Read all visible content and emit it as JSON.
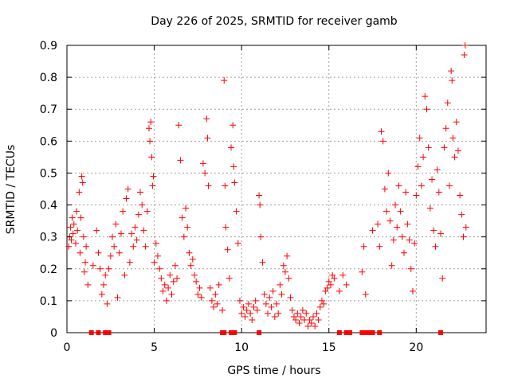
{
  "chart_data": {
    "type": "scatter",
    "title": "Day 226 of 2025, SRMTID for receiver gamb",
    "xlabel": "GPS time / hours",
    "ylabel": "SRMTID / TECUs",
    "xlim": [
      0,
      24
    ],
    "ylim": [
      0,
      0.9
    ],
    "xticks": [
      0,
      5,
      10,
      15,
      20
    ],
    "yticks": [
      0,
      0.1,
      0.2,
      0.3,
      0.4,
      0.5,
      0.6,
      0.7,
      0.8,
      0.9
    ],
    "xtick_labels": [
      "0",
      "5",
      "10",
      "15",
      "20"
    ],
    "ytick_labels": [
      "0",
      "0.1",
      "0.2",
      "0.3",
      "0.4",
      "0.5",
      "0.6",
      "0.7",
      "0.8",
      "0.9"
    ],
    "grid": true,
    "marker": "+",
    "series_color": "#ff0000",
    "series": [
      {
        "name": "SRMTID",
        "points": [
          [
            0.1,
            0.27
          ],
          [
            0.15,
            0.3
          ],
          [
            0.2,
            0.33
          ],
          [
            0.25,
            0.29
          ],
          [
            0.3,
            0.36
          ],
          [
            0.35,
            0.31
          ],
          [
            0.4,
            0.34
          ],
          [
            0.5,
            0.28
          ],
          [
            0.55,
            0.38
          ],
          [
            0.6,
            0.32
          ],
          [
            0.7,
            0.44
          ],
          [
            0.75,
            0.25
          ],
          [
            0.8,
            0.36
          ],
          [
            0.85,
            0.49
          ],
          [
            0.9,
            0.47
          ],
          [
            0.95,
            0.3
          ],
          [
            1.0,
            0.19
          ],
          [
            1.05,
            0.22
          ],
          [
            1.1,
            0.27
          ],
          [
            1.2,
            0.15
          ],
          [
            1.5,
            0.21
          ],
          [
            1.7,
            0.32
          ],
          [
            1.8,
            0.25
          ],
          [
            1.9,
            0.2
          ],
          [
            2.0,
            0.12
          ],
          [
            2.1,
            0.15
          ],
          [
            2.2,
            0.18
          ],
          [
            2.3,
            0.09
          ],
          [
            2.4,
            0.2
          ],
          [
            2.5,
            0.24
          ],
          [
            2.6,
            0.3
          ],
          [
            2.7,
            0.27
          ],
          [
            2.8,
            0.34
          ],
          [
            2.9,
            0.11
          ],
          [
            3.0,
            0.25
          ],
          [
            3.1,
            0.31
          ],
          [
            3.2,
            0.38
          ],
          [
            3.3,
            0.18
          ],
          [
            3.4,
            0.42
          ],
          [
            3.5,
            0.45
          ],
          [
            3.6,
            0.22
          ],
          [
            3.7,
            0.31
          ],
          [
            3.8,
            0.27
          ],
          [
            3.9,
            0.33
          ],
          [
            4.0,
            0.29
          ],
          [
            4.1,
            0.37
          ],
          [
            4.2,
            0.44
          ],
          [
            4.3,
            0.4
          ],
          [
            4.4,
            0.32
          ],
          [
            4.5,
            0.27
          ],
          [
            4.6,
            0.38
          ],
          [
            4.7,
            0.64
          ],
          [
            4.75,
            0.6
          ],
          [
            4.8,
            0.66
          ],
          [
            4.85,
            0.55
          ],
          [
            4.9,
            0.46
          ],
          [
            4.95,
            0.49
          ],
          [
            5.0,
            0.22
          ],
          [
            5.1,
            0.28
          ],
          [
            5.2,
            0.24
          ],
          [
            5.3,
            0.2
          ],
          [
            5.4,
            0.17
          ],
          [
            5.5,
            0.13
          ],
          [
            5.6,
            0.15
          ],
          [
            5.7,
            0.1
          ],
          [
            5.8,
            0.14
          ],
          [
            5.9,
            0.18
          ],
          [
            6.0,
            0.12
          ],
          [
            6.1,
            0.16
          ],
          [
            6.2,
            0.21
          ],
          [
            6.3,
            0.17
          ],
          [
            6.4,
            0.65
          ],
          [
            6.5,
            0.54
          ],
          [
            6.6,
            0.36
          ],
          [
            6.7,
            0.3
          ],
          [
            6.8,
            0.39
          ],
          [
            6.9,
            0.33
          ],
          [
            7.0,
            0.25
          ],
          [
            7.1,
            0.21
          ],
          [
            7.2,
            0.23
          ],
          [
            7.3,
            0.18
          ],
          [
            7.4,
            0.16
          ],
          [
            7.5,
            0.12
          ],
          [
            7.6,
            0.14
          ],
          [
            7.7,
            0.11
          ],
          [
            7.8,
            0.53
          ],
          [
            7.9,
            0.5
          ],
          [
            8.0,
            0.67
          ],
          [
            8.05,
            0.61
          ],
          [
            8.1,
            0.46
          ],
          [
            8.2,
            0.14
          ],
          [
            8.3,
            0.1
          ],
          [
            8.4,
            0.08
          ],
          [
            8.5,
            0.12
          ],
          [
            8.6,
            0.09
          ],
          [
            8.7,
            0.15
          ],
          [
            8.9,
            0.07
          ],
          [
            9.0,
            0.79
          ],
          [
            9.05,
            0.46
          ],
          [
            9.1,
            0.33
          ],
          [
            9.2,
            0.26
          ],
          [
            9.3,
            0.17
          ],
          [
            9.4,
            0.58
          ],
          [
            9.5,
            0.65
          ],
          [
            9.55,
            0.52
          ],
          [
            9.6,
            0.47
          ],
          [
            9.7,
            0.38
          ],
          [
            9.8,
            0.28
          ],
          [
            9.9,
            0.1
          ],
          [
            10.0,
            0.06
          ],
          [
            10.1,
            0.08
          ],
          [
            10.2,
            0.05
          ],
          [
            10.3,
            0.07
          ],
          [
            10.4,
            0.09
          ],
          [
            10.5,
            0.06
          ],
          [
            10.6,
            0.04
          ],
          [
            10.7,
            0.08
          ],
          [
            10.8,
            0.1
          ],
          [
            10.9,
            0.07
          ],
          [
            11.0,
            0.43
          ],
          [
            11.05,
            0.4
          ],
          [
            11.1,
            0.3
          ],
          [
            11.2,
            0.22
          ],
          [
            11.3,
            0.12
          ],
          [
            11.4,
            0.09
          ],
          [
            11.5,
            0.06
          ],
          [
            11.6,
            0.11
          ],
          [
            11.7,
            0.08
          ],
          [
            11.8,
            0.13
          ],
          [
            11.9,
            0.05
          ],
          [
            12.0,
            0.09
          ],
          [
            12.1,
            0.06
          ],
          [
            12.2,
            0.15
          ],
          [
            12.3,
            0.12
          ],
          [
            12.4,
            0.21
          ],
          [
            12.5,
            0.19
          ],
          [
            12.6,
            0.24
          ],
          [
            12.7,
            0.17
          ],
          [
            12.8,
            0.11
          ],
          [
            12.9,
            0.07
          ],
          [
            13.0,
            0.05
          ],
          [
            13.1,
            0.04
          ],
          [
            13.2,
            0.06
          ],
          [
            13.3,
            0.03
          ],
          [
            13.4,
            0.05
          ],
          [
            13.5,
            0.07
          ],
          [
            13.6,
            0.04
          ],
          [
            13.7,
            0.06
          ],
          [
            13.8,
            0.02
          ],
          [
            13.9,
            0.04
          ],
          [
            14.0,
            0.03
          ],
          [
            14.1,
            0.05
          ],
          [
            14.2,
            0.02
          ],
          [
            14.3,
            0.06
          ],
          [
            14.4,
            0.04
          ],
          [
            14.5,
            0.08
          ],
          [
            14.6,
            0.1
          ],
          [
            14.7,
            0.09
          ],
          [
            14.8,
            0.13
          ],
          [
            14.9,
            0.14
          ],
          [
            15.0,
            0.16
          ],
          [
            15.1,
            0.15
          ],
          [
            15.2,
            0.18
          ],
          [
            15.3,
            0.17
          ],
          [
            15.6,
            0.13
          ],
          [
            15.8,
            0.18
          ],
          [
            16.0,
            0.15
          ],
          [
            16.9,
            0.19
          ],
          [
            17.0,
            0.27
          ],
          [
            17.1,
            0.12
          ],
          [
            17.5,
            0.32
          ],
          [
            17.8,
            0.34
          ],
          [
            17.9,
            0.27
          ],
          [
            18.0,
            0.63
          ],
          [
            18.1,
            0.6
          ],
          [
            18.2,
            0.45
          ],
          [
            18.3,
            0.38
          ],
          [
            18.4,
            0.5
          ],
          [
            18.5,
            0.35
          ],
          [
            18.6,
            0.21
          ],
          [
            18.7,
            0.29
          ],
          [
            18.8,
            0.4
          ],
          [
            18.9,
            0.33
          ],
          [
            19.0,
            0.46
          ],
          [
            19.1,
            0.38
          ],
          [
            19.2,
            0.3
          ],
          [
            19.3,
            0.25
          ],
          [
            19.4,
            0.44
          ],
          [
            19.5,
            0.34
          ],
          [
            19.6,
            0.29
          ],
          [
            19.7,
            0.2
          ],
          [
            19.8,
            0.13
          ],
          [
            19.9,
            0.28
          ],
          [
            20.0,
            0.43
          ],
          [
            20.1,
            0.52
          ],
          [
            20.2,
            0.61
          ],
          [
            20.3,
            0.46
          ],
          [
            20.4,
            0.55
          ],
          [
            20.5,
            0.74
          ],
          [
            20.6,
            0.7
          ],
          [
            20.7,
            0.58
          ],
          [
            20.8,
            0.39
          ],
          [
            20.9,
            0.48
          ],
          [
            21.0,
            0.32
          ],
          [
            21.1,
            0.27
          ],
          [
            21.2,
            0.51
          ],
          [
            21.3,
            0.44
          ],
          [
            21.4,
            0.31
          ],
          [
            21.5,
            0.17
          ],
          [
            21.6,
            0.58
          ],
          [
            21.7,
            0.64
          ],
          [
            21.8,
            0.72
          ],
          [
            21.9,
            0.46
          ],
          [
            22.0,
            0.82
          ],
          [
            22.05,
            0.79
          ],
          [
            22.1,
            0.61
          ],
          [
            22.2,
            0.55
          ],
          [
            22.3,
            0.66
          ],
          [
            22.4,
            0.57
          ],
          [
            22.5,
            0.43
          ],
          [
            22.6,
            0.37
          ],
          [
            22.7,
            0.3
          ],
          [
            22.75,
            0.87
          ],
          [
            22.8,
            0.9
          ],
          [
            22.85,
            0.33
          ]
        ]
      }
    ],
    "baseline_markers_x": [
      1.4,
      1.8,
      2.2,
      2.4,
      8.9,
      9.0,
      9.4,
      9.6,
      11.0,
      15.6,
      16.0,
      16.2,
      16.9,
      17.1,
      17.3,
      17.5,
      17.9,
      21.4
    ]
  }
}
